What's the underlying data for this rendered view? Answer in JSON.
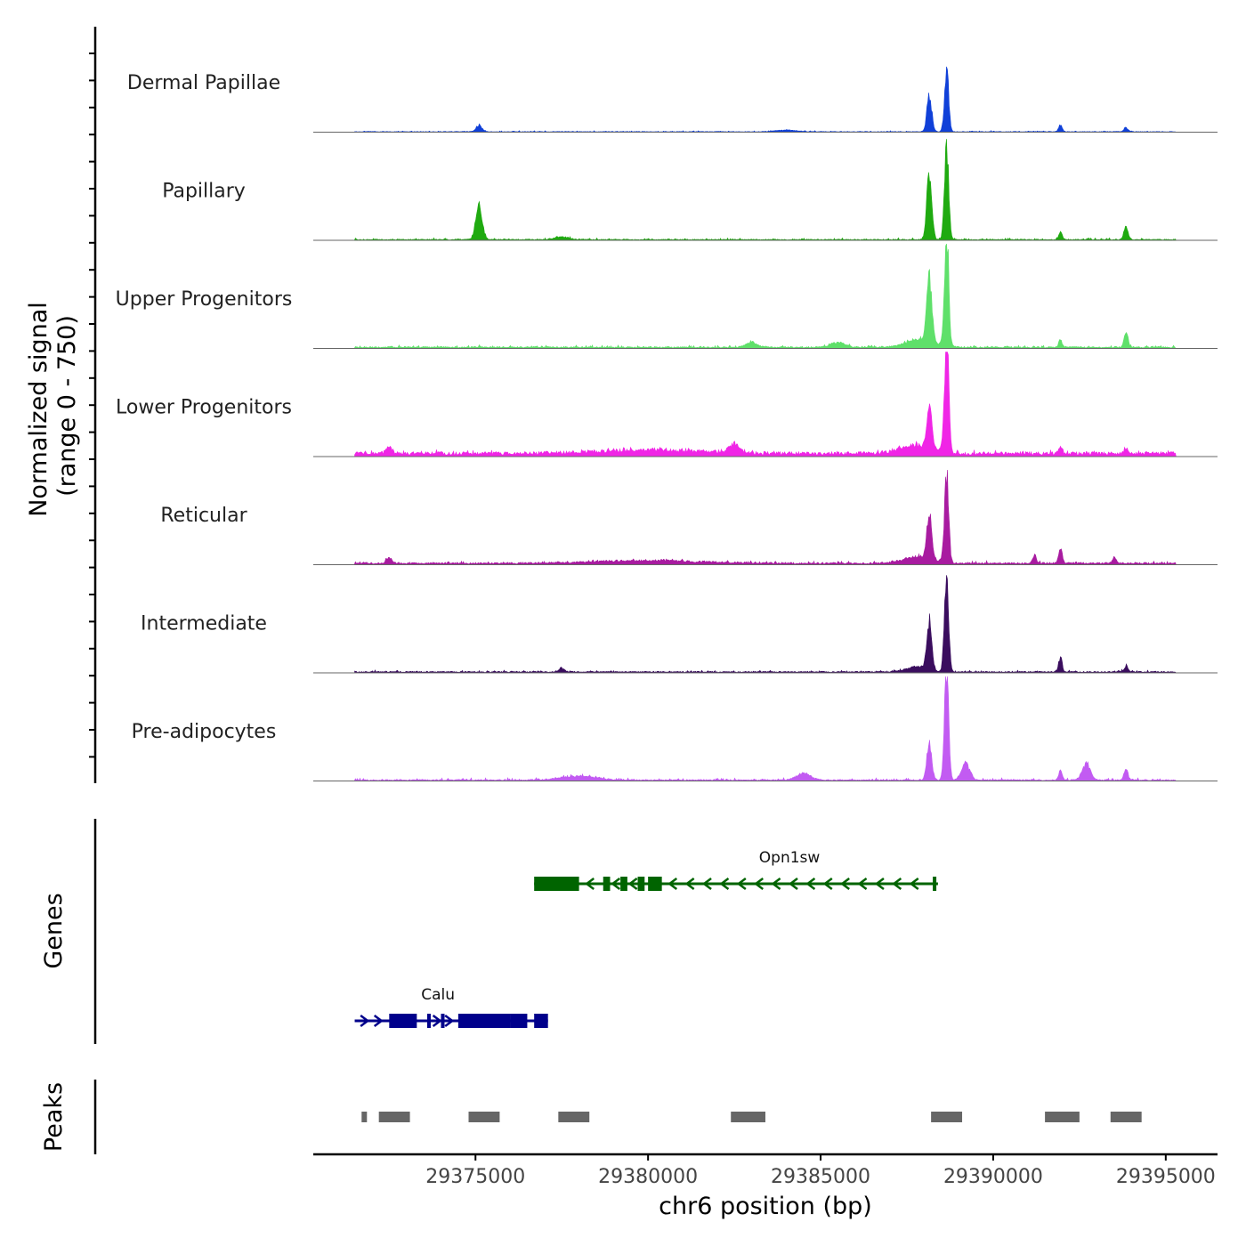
{
  "chart_data": {
    "type": "area",
    "title": "",
    "ylabel_line1": "Normalized signal",
    "ylabel_line2": "(range 0 - 750)",
    "ylim": [
      0,
      750
    ],
    "xlabel": "chr6 position (bp)",
    "xlim": [
      29370300,
      29396500
    ],
    "xticks": [
      {
        "value": 29375000,
        "label": "29375000"
      },
      {
        "value": 29380000,
        "label": "29380000"
      },
      {
        "value": 29385000,
        "label": "29385000"
      },
      {
        "value": 29390000,
        "label": "29390000"
      },
      {
        "value": 29395000,
        "label": "29395000"
      }
    ],
    "signal_range": [
      29371500,
      29395300
    ],
    "series": [
      {
        "name": "Dermal Papillae",
        "color": "#1040D8",
        "base": 4,
        "noise": 6,
        "peaks": [
          [
            29375100,
            45,
            90
          ],
          [
            29388150,
            260,
            70
          ],
          [
            29388650,
            470,
            60
          ],
          [
            29391950,
            55,
            50
          ],
          [
            29393850,
            30,
            60
          ],
          [
            29384000,
            12,
            300
          ]
        ]
      },
      {
        "name": "Papillary",
        "color": "#1FAA10",
        "base": 6,
        "noise": 10,
        "peaks": [
          [
            29375100,
            270,
            90
          ],
          [
            29388150,
            500,
            70
          ],
          [
            29388650,
            690,
            60
          ],
          [
            29391950,
            55,
            50
          ],
          [
            29393850,
            90,
            60
          ],
          [
            29377500,
            20,
            200
          ]
        ]
      },
      {
        "name": "Upper Progenitors",
        "color": "#5FE06A",
        "base": 10,
        "noise": 12,
        "peaks": [
          [
            29388150,
            480,
            75
          ],
          [
            29388650,
            860,
            60
          ],
          [
            29391950,
            55,
            50
          ],
          [
            29393850,
            105,
            60
          ],
          [
            29383000,
            40,
            150
          ],
          [
            29385500,
            35,
            200
          ],
          [
            29387900,
            60,
            400
          ]
        ]
      },
      {
        "name": "Lower Progenitors",
        "color": "#F025E6",
        "base": 25,
        "noise": 16,
        "peaks": [
          [
            29388150,
            310,
            70
          ],
          [
            29388650,
            860,
            60
          ],
          [
            29382500,
            60,
            150
          ],
          [
            29372500,
            50,
            80
          ],
          [
            29391950,
            50,
            50
          ],
          [
            29393850,
            40,
            60
          ],
          [
            29380000,
            25,
            1500
          ],
          [
            29387800,
            60,
            500
          ]
        ]
      },
      {
        "name": "Reticular",
        "color": "#A81BA0",
        "base": 12,
        "noise": 12,
        "peaks": [
          [
            29388150,
            340,
            70
          ],
          [
            29388650,
            650,
            60
          ],
          [
            29391950,
            110,
            50
          ],
          [
            29391200,
            60,
            50
          ],
          [
            29372500,
            40,
            80
          ],
          [
            29393500,
            40,
            60
          ],
          [
            29380000,
            20,
            1500
          ],
          [
            29387800,
            50,
            400
          ]
        ]
      },
      {
        "name": "Intermediate",
        "color": "#3A0D5E",
        "base": 8,
        "noise": 10,
        "peaks": [
          [
            29388150,
            360,
            70
          ],
          [
            29388650,
            750,
            60
          ],
          [
            29391950,
            105,
            50
          ],
          [
            29377500,
            30,
            80
          ],
          [
            29393850,
            40,
            60
          ],
          [
            29387800,
            40,
            300
          ]
        ]
      },
      {
        "name": "Pre-adipocytes",
        "color": "#C25BF2",
        "base": 8,
        "noise": 14,
        "peaks": [
          [
            29388150,
            280,
            70
          ],
          [
            29388650,
            820,
            60
          ],
          [
            29389200,
            120,
            120
          ],
          [
            29392700,
            120,
            120
          ],
          [
            29391950,
            70,
            50
          ],
          [
            29393850,
            70,
            60
          ],
          [
            29378000,
            30,
            500
          ],
          [
            29384500,
            50,
            200
          ]
        ]
      }
    ],
    "genes_label": "Genes",
    "genes": [
      {
        "name": "Opn1sw",
        "color": "#006400",
        "strand": "-",
        "start": 29376700,
        "end": 29388400,
        "exons": [
          [
            29376700,
            29378000
          ],
          [
            29378700,
            29378900
          ],
          [
            29379200,
            29379400
          ],
          [
            29379700,
            29379900
          ],
          [
            29380000,
            29380400
          ],
          [
            29388250,
            29388350
          ]
        ],
        "arrows": [
          29378300,
          29379050,
          29379550,
          29380700,
          29381200,
          29381700,
          29382200,
          29382700,
          29383200,
          29383700,
          29384200,
          29384700,
          29385200,
          29385700,
          29386200,
          29386700,
          29387200,
          29387700
        ]
      },
      {
        "name": "Calu",
        "color": "#00008B",
        "strand": "+",
        "start": 29371500,
        "end": 29377100,
        "exons": [
          [
            29372500,
            29373300
          ],
          [
            29373600,
            29373700
          ],
          [
            29374000,
            29374100
          ],
          [
            29374500,
            29376000
          ],
          [
            29376000,
            29376500
          ],
          [
            29376700,
            29377100
          ]
        ],
        "arrows": [
          29371800,
          29372200,
          29373900,
          29374250
        ]
      }
    ],
    "peaks_label": "Peaks",
    "peaks_color": "#666666",
    "peaks": [
      [
        29371700,
        29371850
      ],
      [
        29372200,
        29373100
      ],
      [
        29374800,
        29375700
      ],
      [
        29377400,
        29378300
      ],
      [
        29382400,
        29383400
      ],
      [
        29388200,
        29389100
      ],
      [
        29391500,
        29392500
      ],
      [
        29393400,
        29394300
      ]
    ]
  }
}
